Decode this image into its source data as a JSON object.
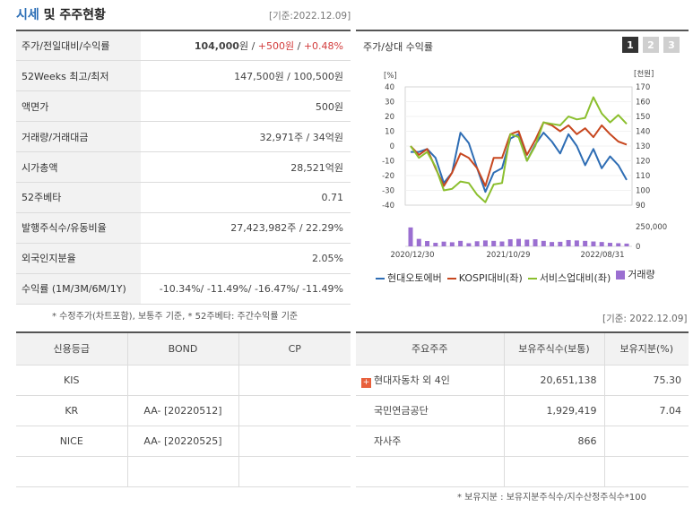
{
  "header": {
    "title_accent": "시세",
    "title_rest": " 및 주주현황",
    "basis": "[기준:2022.12.09]"
  },
  "info_rows": [
    {
      "label": "주가/전일대비/수익률"
    },
    {
      "label": "52Weeks 최고/최저",
      "value": "147,500원 / 100,500원"
    },
    {
      "label": "액면가",
      "value": "500원"
    },
    {
      "label": "거래량/거래대금",
      "value": "32,971주 / 34억원"
    },
    {
      "label": "시가총액",
      "value": "28,521억원"
    },
    {
      "label": "52주베타",
      "value": "0.71"
    },
    {
      "label": "발행주식수/유동비율",
      "value": "27,423,982주 / 22.29%"
    },
    {
      "label": "외국인지분율",
      "value": "2.05%"
    },
    {
      "label": "수익률 (1M/3M/6M/1Y)",
      "value": "-10.34%/ -11.49%/ -16.47%/ -11.49%"
    }
  ],
  "price": {
    "value": "104,000",
    "unit": "원",
    "sep1": " / ",
    "change": "+500원",
    "sep2": " / ",
    "rate": "+0.48%"
  },
  "note_left": "* 수정주가(차트포함), 보통주 기준, * 52주베타: 주간수익률 기준",
  "chart_panel": {
    "title": "주가/상대 수익률",
    "pages": [
      "1",
      "2",
      "3"
    ]
  },
  "chart_data": {
    "type": "line",
    "left_axis_unit": "[%]",
    "right_axis_unit": "[천원]",
    "left_ticks": [
      "40",
      "30",
      "20",
      "10",
      "0",
      "-10",
      "-20",
      "-30",
      "-40"
    ],
    "right_ticks": [
      "170",
      "160",
      "150",
      "140",
      "130",
      "120",
      "110",
      "100",
      "90"
    ],
    "volume_ticks": [
      "250,000",
      "0"
    ],
    "x_labels": [
      "2020/12/30",
      "2021/10/29",
      "2022/08/31"
    ],
    "ylim_left": [
      -40,
      40
    ],
    "ylim_right": [
      90,
      170
    ],
    "series": [
      {
        "name": "현대오토에버",
        "color": "#2e6db4",
        "axis": "right",
        "values": [
          126,
          126,
          128,
          122,
          105,
          112,
          139,
          132,
          115,
          99,
          112,
          115,
          135,
          138,
          120,
          131,
          139,
          133,
          125,
          138,
          130,
          117,
          128,
          115,
          123,
          117,
          107
        ]
      },
      {
        "name": "KOSPI대비(좌)",
        "color": "#c7471f",
        "axis": "left",
        "values": [
          0,
          -6,
          -2,
          -15,
          -27,
          -18,
          -5,
          -8,
          -15,
          -27,
          -8,
          -8,
          8,
          10,
          -6,
          4,
          16,
          14,
          10,
          14,
          8,
          12,
          6,
          14,
          8,
          3,
          1
        ]
      },
      {
        "name": "서비스업대비(좌)",
        "color": "#8bbf2e",
        "axis": "left",
        "values": [
          0,
          -8,
          -4,
          -14,
          -30,
          -29,
          -24,
          -25,
          -33,
          -38,
          -26,
          -25,
          8,
          6,
          -10,
          0,
          16,
          15,
          14,
          20,
          18,
          19,
          33,
          22,
          16,
          21,
          15
        ]
      },
      {
        "name": "거래량",
        "color": "#9b6fd1",
        "axis": "volume",
        "values": [
          240000,
          95000,
          68000,
          45000,
          60000,
          52000,
          70000,
          40000,
          65000,
          75000,
          70000,
          62000,
          90000,
          95000,
          85000,
          90000,
          70000,
          55000,
          58000,
          80000,
          75000,
          70000,
          62000,
          55000,
          45000,
          40000,
          35000
        ]
      }
    ]
  },
  "legend": [
    {
      "label": "현대오토에버",
      "color": "#2e6db4",
      "kind": "line"
    },
    {
      "label": "KOSPI대비(좌)",
      "color": "#c7471f",
      "kind": "line"
    },
    {
      "label": "서비스업대비(좌)",
      "color": "#8bbf2e",
      "kind": "line"
    },
    {
      "label": "거래량",
      "color": "#9b6fd1",
      "kind": "box"
    }
  ],
  "basis_right": "[기준: 2022.12.09]",
  "credit": {
    "headers": [
      "신용등급",
      "BOND",
      "CP"
    ],
    "rows": [
      [
        "KIS",
        "",
        ""
      ],
      [
        "KR",
        "AA-  [20220512]",
        ""
      ],
      [
        "NICE",
        "AA-  [20220525]",
        ""
      ],
      [
        "",
        "",
        ""
      ]
    ]
  },
  "holders": {
    "headers": [
      "주요주주",
      "보유주식수(보통)",
      "보유지분(%)"
    ],
    "rows": [
      {
        "name": "현대자동차 외 4인",
        "shares": "20,651,138",
        "pct": "75.30",
        "expand": "+"
      },
      {
        "name": "국민연금공단",
        "shares": "1,929,419",
        "pct": "7.04"
      },
      {
        "name": "자사주",
        "shares": "866",
        "pct": ""
      },
      {
        "name": "",
        "shares": "",
        "pct": ""
      }
    ]
  },
  "note_bottom": "* 보유지분 : 보유지분주식수/지수산정주식수*100"
}
